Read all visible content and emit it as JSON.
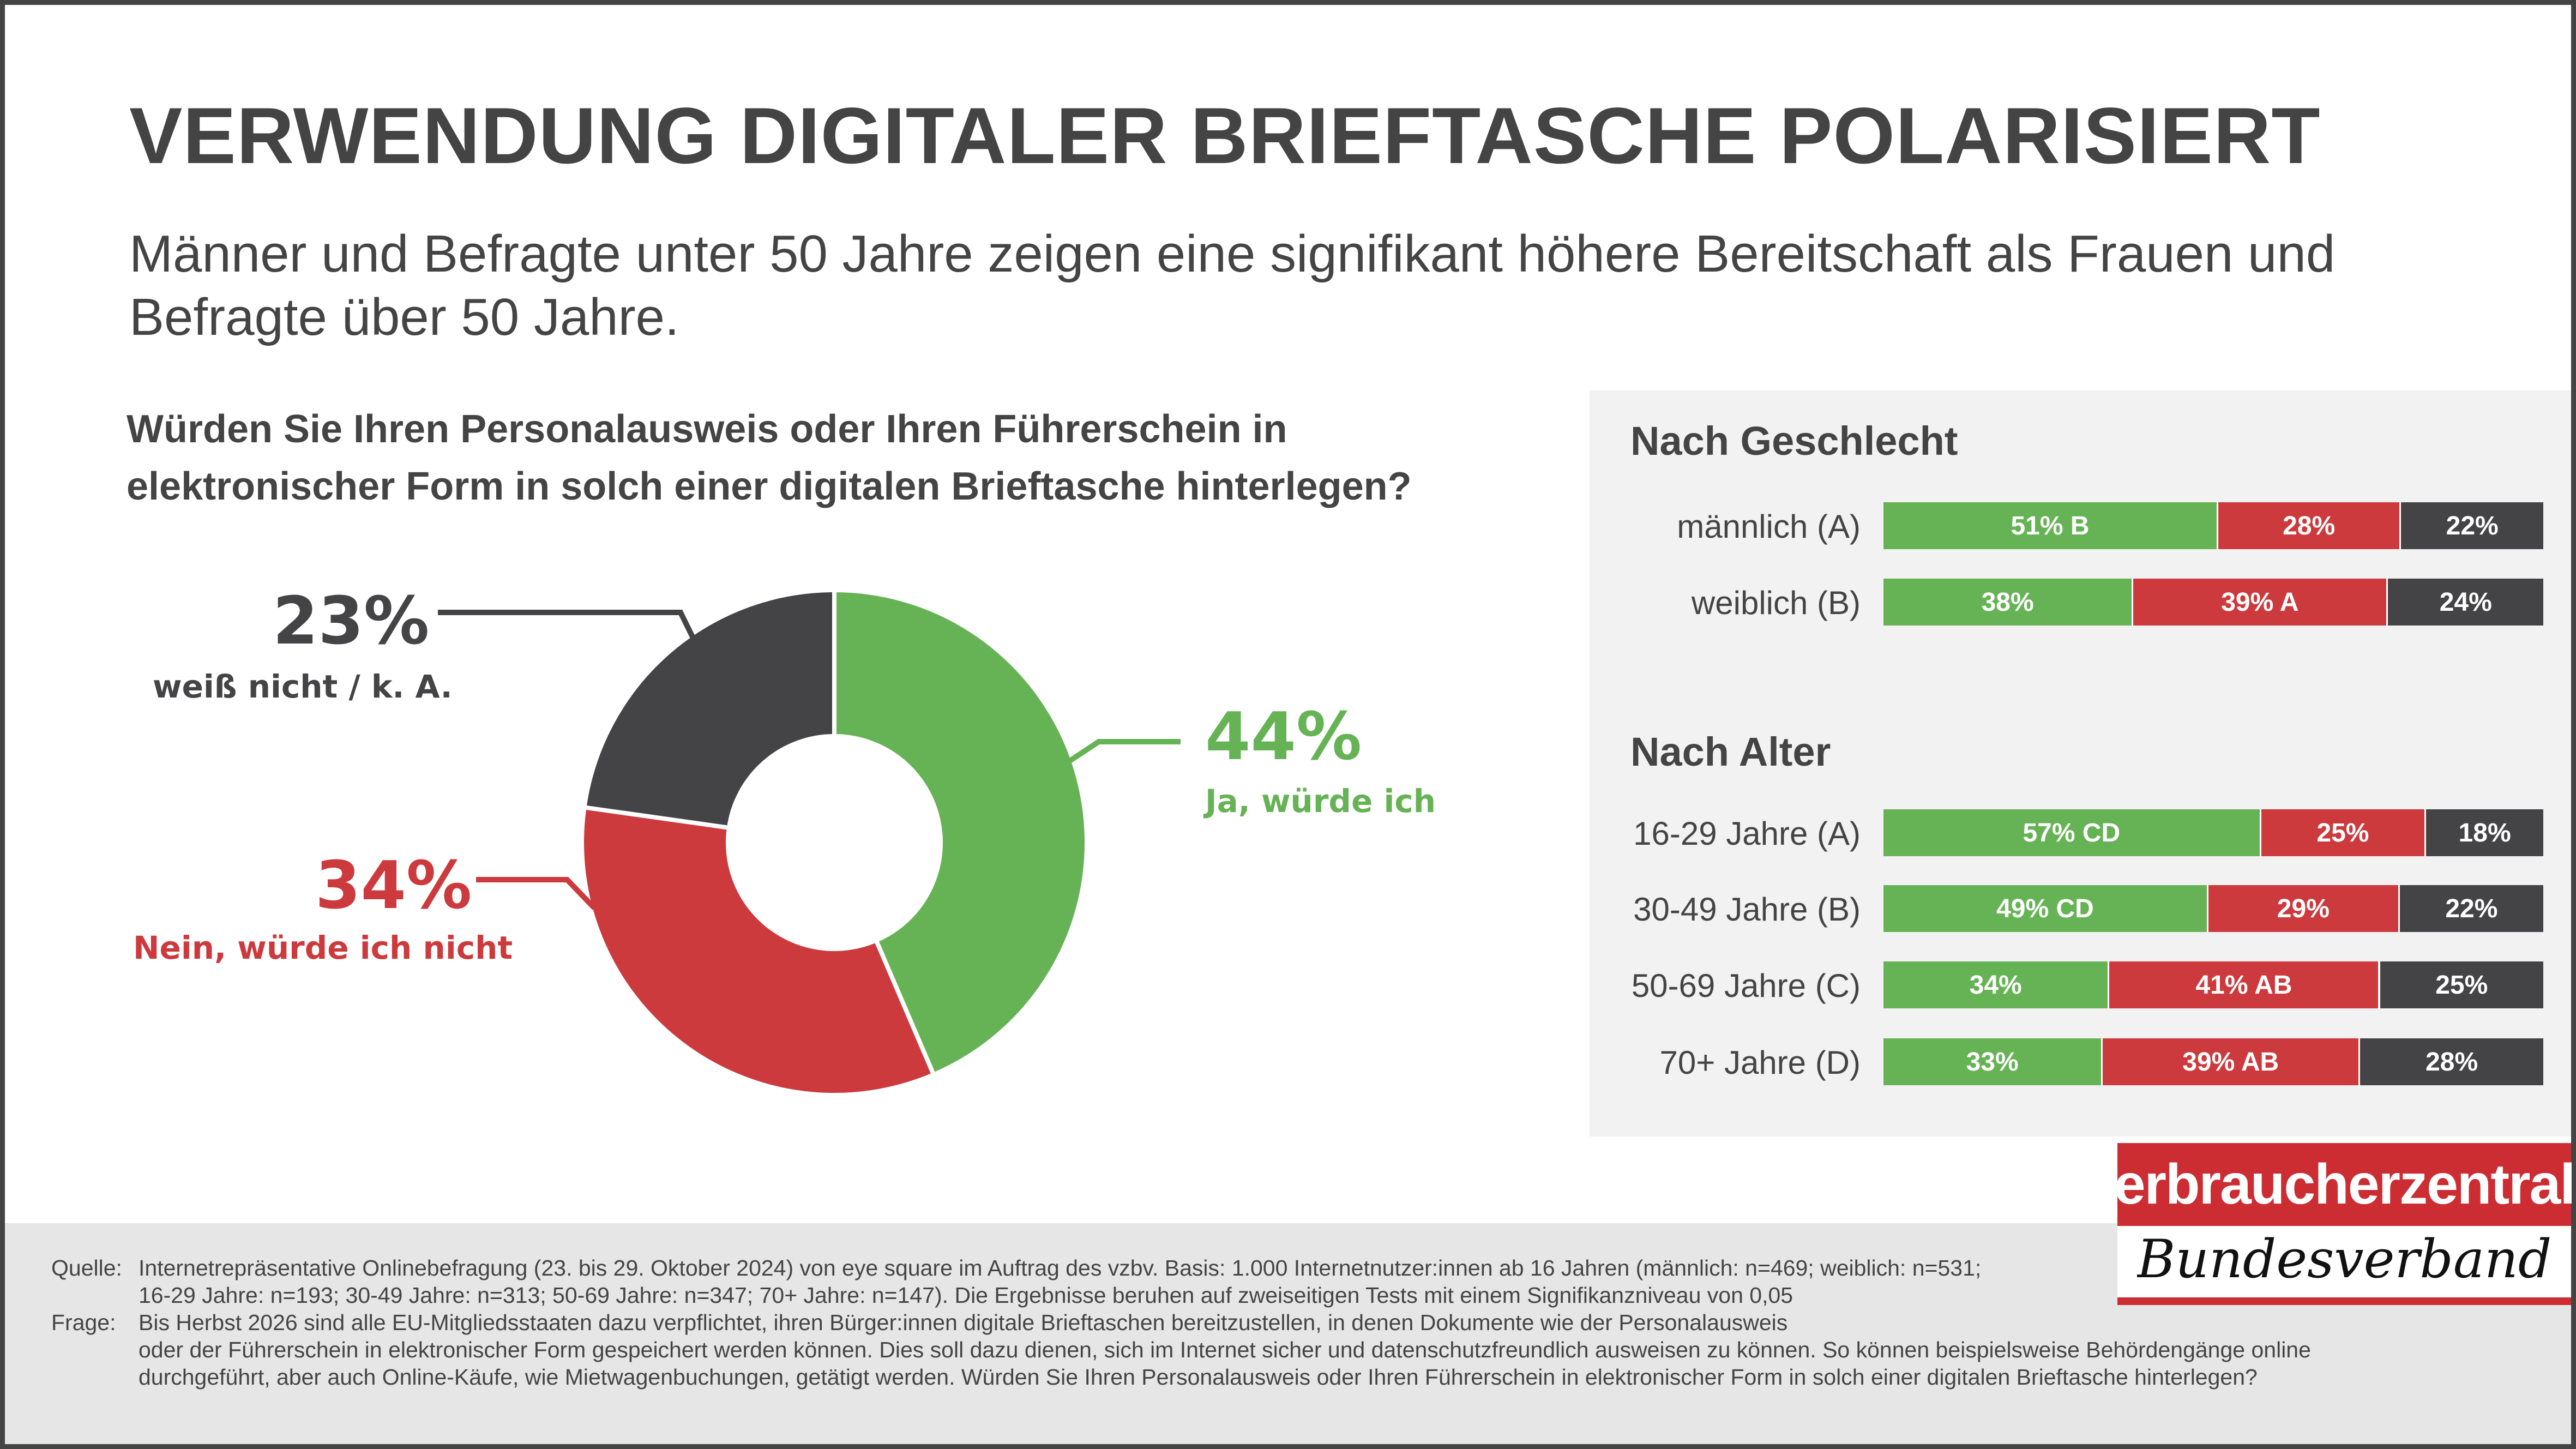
{
  "header": {
    "title": "VERWENDUNG DIGITALER BRIEFTASCHE POLARISIERT",
    "subtitle": "Männer und Befragte unter 50 Jahre zeigen eine signifikant höhere Bereitschaft als Frauen und Befragte über 50 Jahre."
  },
  "colors": {
    "green": "#66b355",
    "red": "#cc3a3d",
    "dark": "#444446",
    "panel": "#f2f2f2"
  },
  "chart_data": [
    {
      "type": "pie",
      "title": "Würden Sie Ihren Personalausweis oder Ihren Führerschein in elektronischer Form in solch einer digitalen Brieftasche hinterlegen?",
      "slices": [
        {
          "label": "Ja, würde ich",
          "value": 44,
          "display": "44%",
          "color": "#66b355"
        },
        {
          "label": "Nein, würde ich nicht",
          "value": 34,
          "display": "34%",
          "color": "#cc3a3d"
        },
        {
          "label": "weiß nicht / k. A.",
          "value": 23,
          "display": "23%",
          "color": "#444446"
        }
      ]
    },
    {
      "type": "bar",
      "orientation": "horizontal",
      "stacked": true,
      "title": "Nach Geschlecht",
      "categories": [
        "männlich (A)",
        "weiblich (B)"
      ],
      "series": [
        {
          "name": "Ja, würde ich",
          "values": [
            51,
            38
          ],
          "labels": [
            "51% B",
            "38%"
          ],
          "color": "#66b355"
        },
        {
          "name": "Nein, würde ich nicht",
          "values": [
            28,
            39
          ],
          "labels": [
            "28%",
            "39% A"
          ],
          "color": "#cc3a3d"
        },
        {
          "name": "weiß nicht / k. A.",
          "values": [
            22,
            24
          ],
          "labels": [
            "22%",
            "24%"
          ],
          "color": "#444446"
        }
      ]
    },
    {
      "type": "bar",
      "orientation": "horizontal",
      "stacked": true,
      "title": "Nach Alter",
      "categories": [
        "16-29 Jahre (A)",
        "30-49 Jahre (B)",
        "50-69 Jahre (C)",
        "70+ Jahre (D)"
      ],
      "series": [
        {
          "name": "Ja, würde ich",
          "values": [
            57,
            49,
            34,
            33
          ],
          "labels": [
            "57% CD",
            "49% CD",
            "34%",
            "33%"
          ],
          "color": "#66b355"
        },
        {
          "name": "Nein, würde ich nicht",
          "values": [
            25,
            29,
            41,
            39
          ],
          "labels": [
            "25%",
            "29%",
            "41% AB",
            "39% AB"
          ],
          "color": "#cc3a3d"
        },
        {
          "name": "weiß nicht / k. A.",
          "values": [
            18,
            22,
            25,
            28
          ],
          "labels": [
            "18%",
            "22%",
            "25%",
            "28%"
          ],
          "color": "#444446"
        }
      ]
    }
  ],
  "footer": {
    "source_key": "Quelle:",
    "source_lines": [
      "Internetrepräsentative Onlinebefragung (23. bis 29. Oktober 2024) von eye square im Auftrag des vzbv. Basis: 1.000 Internetnutzer:innen ab 16 Jahren (männlich: n=469; weiblich: n=531;",
      "16-29 Jahre: n=193; 30-49 Jahre: n=313; 50-69 Jahre: n=347; 70+ Jahre: n=147). Die Ergebnisse beruhen auf zweiseitigen Tests mit einem Signifikanzniveau von 0,05"
    ],
    "question_key": "Frage:",
    "question_lines": [
      "Bis Herbst 2026 sind alle EU-Mitgliedsstaaten dazu verpflichtet, ihren Bürger:innen digitale Brieftaschen bereitzustellen, in denen Dokumente wie der Personalausweis",
      "oder der Führerschein in elektronischer Form gespeichert werden können. Dies soll dazu dienen, sich im Internet sicher und datenschutzfreundlich ausweisen zu können. So können beispielsweise Behördengänge online",
      "durchgeführt, aber auch Online-Käufe, wie Mietwagenbuchungen, getätigt werden. Würden Sie Ihren Personalausweis oder Ihren Führerschein in elektronischer Form in solch einer digitalen Brieftasche hinterlegen?"
    ]
  },
  "logo": {
    "top": "verbraucherzentrale",
    "bottom": "Bundesverband"
  }
}
